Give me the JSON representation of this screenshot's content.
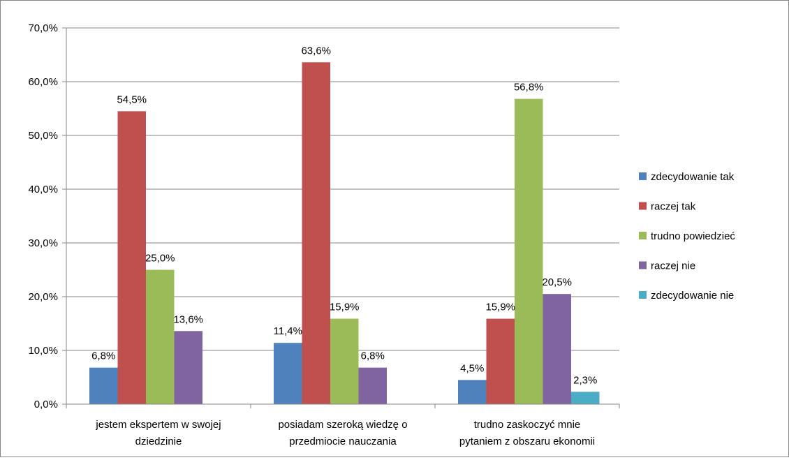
{
  "chart_data": {
    "type": "bar",
    "title": "",
    "xlabel": "",
    "ylabel": "",
    "ylim": [
      0,
      70
    ],
    "y_ticks": [
      "0,0%",
      "10,0%",
      "20,0%",
      "30,0%",
      "40,0%",
      "50,0%",
      "60,0%",
      "70,0%"
    ],
    "grid": "horizontal",
    "legend_position": "right",
    "categories": [
      [
        "jestem ekspertem w swojej",
        "dziedzinie"
      ],
      [
        "posiadam szeroką wiedzę o",
        "przedmiocie nauczania"
      ],
      [
        "trudno zaskoczyć mnie",
        "pytaniem z obszaru ekonomii"
      ]
    ],
    "series": [
      {
        "name": "zdecydowanie tak",
        "color": "#4F81BD",
        "values": [
          6.8,
          11.4,
          4.5
        ],
        "labels": [
          "6,8%",
          "11,4%",
          "4,5%"
        ]
      },
      {
        "name": "raczej tak",
        "color": "#C0504D",
        "values": [
          54.5,
          63.6,
          15.9
        ],
        "labels": [
          "54,5%",
          "63,6%",
          "15,9%"
        ]
      },
      {
        "name": "trudno powiedzieć",
        "color": "#9BBB59",
        "values": [
          25.0,
          15.9,
          56.8
        ],
        "labels": [
          "25,0%",
          "15,9%",
          "56,8%"
        ]
      },
      {
        "name": "raczej nie",
        "color": "#8064A2",
        "values": [
          13.6,
          6.8,
          20.5
        ],
        "labels": [
          "13,6%",
          "6,8%",
          "20,5%"
        ]
      },
      {
        "name": "zdecydowanie nie",
        "color": "#4BACC6",
        "values": [
          null,
          null,
          2.3
        ],
        "labels": [
          null,
          null,
          "2,3%"
        ]
      }
    ]
  }
}
